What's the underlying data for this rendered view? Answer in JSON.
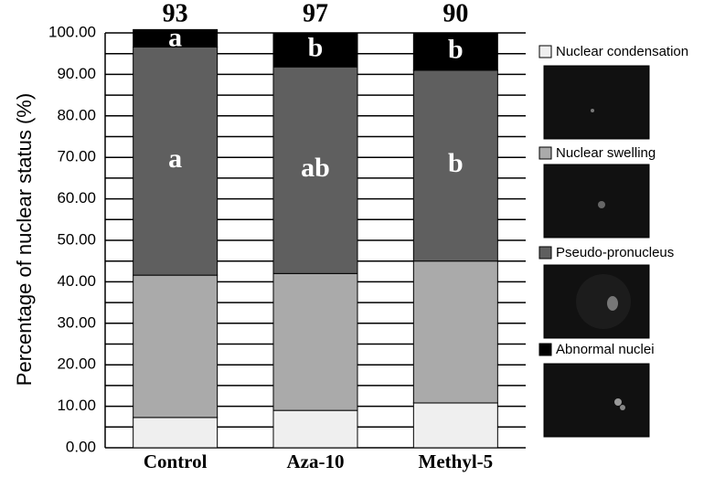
{
  "chart_data": {
    "type": "stacked_bar",
    "y_label": "Percentage of nuclear status (%)",
    "categories": [
      "Control",
      "Aza-10",
      "Methyl-5"
    ],
    "top_labels": [
      "93",
      "97",
      "90"
    ],
    "series": [
      {
        "name": "Nuclear condensation",
        "color": "#efefef",
        "values": [
          7.3,
          9.0,
          10.8
        ]
      },
      {
        "name": "Nuclear swelling",
        "color": "#aaaaaa",
        "values": [
          34.3,
          33.0,
          34.2
        ]
      },
      {
        "name": "Pseudo-pronucleus",
        "color": "#5f5f5f",
        "values": [
          55.0,
          49.8,
          46.0
        ],
        "letters": [
          "a",
          "ab",
          "b"
        ]
      },
      {
        "name": "Abnormal nuclei",
        "color": "#000000",
        "values": [
          4.2,
          8.2,
          9.0
        ],
        "letters": [
          "a",
          "b",
          "b"
        ]
      }
    ],
    "ylim": [
      0,
      100
    ],
    "yticks": [
      {
        "value": 0,
        "label": "0.00"
      },
      {
        "value": 10,
        "label": "10.00"
      },
      {
        "value": 20,
        "label": "20.00"
      },
      {
        "value": 30,
        "label": "30.00"
      },
      {
        "value": 40,
        "label": "40.00"
      },
      {
        "value": 50,
        "label": "50.00"
      },
      {
        "value": 60,
        "label": "60.00"
      },
      {
        "value": 70,
        "label": "70.00"
      },
      {
        "value": 80,
        "label": "80.00"
      },
      {
        "value": 90,
        "label": "90.00"
      },
      {
        "value": 100,
        "label": "100.00"
      }
    ],
    "minor_yticks": [
      5,
      15,
      25,
      35,
      45,
      55,
      65,
      75,
      85,
      95
    ],
    "grid": true
  }
}
